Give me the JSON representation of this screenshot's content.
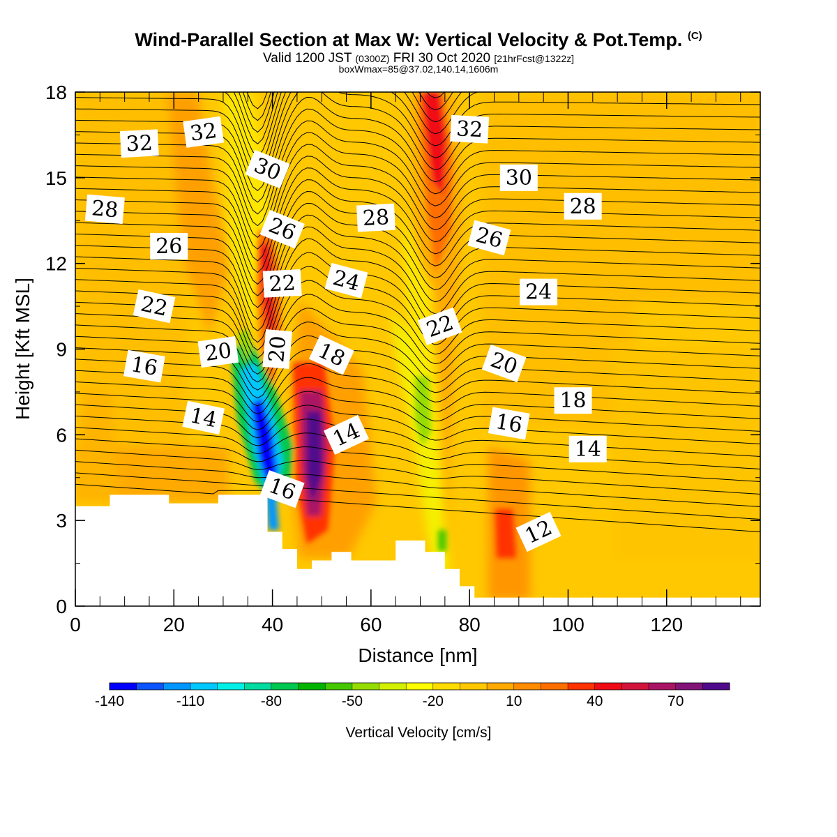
{
  "header": {
    "title": "Wind-Parallel Section at Max W: Vertical Velocity & Pot.Temp.",
    "title_mark": "(C)",
    "valid_prefix": "Valid 1200 JST",
    "valid_utc": "(0300Z)",
    "valid_date": "FRI 30 Oct 2020",
    "forecast": "[21hrFcst@1322z]",
    "box_info": "boxWmax=85@37.02,140.14,1606m"
  },
  "chart_data": {
    "type": "contour",
    "xlabel": "Distance [nm]",
    "ylabel": "Height [Kft MSL]",
    "xlim": [
      0,
      139
    ],
    "ylim": [
      0,
      18
    ],
    "x_ticks": [
      0,
      20,
      40,
      60,
      80,
      100,
      120
    ],
    "y_ticks": [
      0,
      3,
      6,
      9,
      12,
      15,
      18
    ],
    "colorbar": {
      "label": "Vertical Velocity [cm/s]",
      "tick_labels": [
        "-140",
        "-110",
        "-80",
        "-50",
        "-20",
        "10",
        "40",
        "70"
      ],
      "colors": [
        "#0000ff",
        "#0a55ff",
        "#0096ff",
        "#00c8ff",
        "#00f0e6",
        "#00dca0",
        "#00c850",
        "#00b400",
        "#46c800",
        "#96dc00",
        "#d2f000",
        "#ffff00",
        "#ffdc00",
        "#ffc800",
        "#ffaa00",
        "#ff8c00",
        "#ff6e00",
        "#ff3200",
        "#f00a14",
        "#d2143c",
        "#aa1464",
        "#821478",
        "#500a8c"
      ]
    },
    "velocity_features": [
      {
        "kind": "downdraft",
        "x": 36,
        "y": 5.0,
        "min_cms": -140
      },
      {
        "kind": "downdraft",
        "x": 71,
        "y": 7.0,
        "min_cms": -50
      },
      {
        "kind": "updraft",
        "x": 48,
        "y": 5.5,
        "max_cms": 85
      },
      {
        "kind": "updraft",
        "x": 38,
        "y": 10.5,
        "max_cms": 40
      },
      {
        "kind": "updraft",
        "x": 74,
        "y": 15.5,
        "max_cms": 50
      },
      {
        "kind": "updraft",
        "x": 87,
        "y": 2.2,
        "max_cms": 40
      }
    ],
    "terrain_kft": [
      [
        0,
        3.5
      ],
      [
        7,
        3.5
      ],
      [
        7,
        3.9
      ],
      [
        19,
        3.9
      ],
      [
        19,
        3.6
      ],
      [
        29,
        3.6
      ],
      [
        29,
        3.9
      ],
      [
        39,
        3.9
      ],
      [
        39,
        2.6
      ],
      [
        42,
        2.6
      ],
      [
        42,
        2.0
      ],
      [
        45,
        2.0
      ],
      [
        45,
        1.3
      ],
      [
        48,
        1.3
      ],
      [
        48,
        1.6
      ],
      [
        52,
        1.6
      ],
      [
        52,
        1.9
      ],
      [
        56,
        1.9
      ],
      [
        56,
        1.6
      ],
      [
        65,
        1.6
      ],
      [
        65,
        2.3
      ],
      [
        71,
        2.3
      ],
      [
        71,
        1.9
      ],
      [
        75,
        1.9
      ],
      [
        75,
        1.3
      ],
      [
        78,
        1.3
      ],
      [
        78,
        0.7
      ],
      [
        81,
        0.7
      ],
      [
        81,
        0.3
      ],
      [
        139,
        0.3
      ]
    ],
    "theta_labels": [
      {
        "text": "32",
        "x": 13,
        "y": 16.2,
        "rot": -3
      },
      {
        "text": "32",
        "x": 26,
        "y": 16.6,
        "rot": -8
      },
      {
        "text": "30",
        "x": 39,
        "y": 15.3,
        "rot": 22
      },
      {
        "text": "32",
        "x": 80,
        "y": 16.7,
        "rot": 3
      },
      {
        "text": "30",
        "x": 90,
        "y": 15.0,
        "rot": 0
      },
      {
        "text": "28",
        "x": 6,
        "y": 13.9,
        "rot": 5
      },
      {
        "text": "26",
        "x": 19,
        "y": 12.6,
        "rot": 0
      },
      {
        "text": "26",
        "x": 42,
        "y": 13.2,
        "rot": 22
      },
      {
        "text": "28",
        "x": 61,
        "y": 13.6,
        "rot": -3
      },
      {
        "text": "26",
        "x": 84,
        "y": 12.9,
        "rot": 15
      },
      {
        "text": "28",
        "x": 103,
        "y": 14.0,
        "rot": 0
      },
      {
        "text": "24",
        "x": 55,
        "y": 11.4,
        "rot": 15
      },
      {
        "text": "22",
        "x": 42,
        "y": 11.3,
        "rot": -3
      },
      {
        "text": "24",
        "x": 94,
        "y": 11.0,
        "rot": 0
      },
      {
        "text": "22",
        "x": 16,
        "y": 10.5,
        "rot": 12
      },
      {
        "text": "22",
        "x": 74,
        "y": 9.8,
        "rot": -20
      },
      {
        "text": "20",
        "x": 29,
        "y": 8.9,
        "rot": -8
      },
      {
        "text": "20",
        "x": 41,
        "y": 9.0,
        "rot": -85
      },
      {
        "text": "18",
        "x": 52,
        "y": 8.8,
        "rot": 25
      },
      {
        "text": "20",
        "x": 87,
        "y": 8.5,
        "rot": 20
      },
      {
        "text": "16",
        "x": 14,
        "y": 8.4,
        "rot": 10
      },
      {
        "text": "18",
        "x": 101,
        "y": 7.2,
        "rot": 0
      },
      {
        "text": "14",
        "x": 26,
        "y": 6.6,
        "rot": 12
      },
      {
        "text": "16",
        "x": 88,
        "y": 6.4,
        "rot": 10
      },
      {
        "text": "14",
        "x": 55,
        "y": 6.0,
        "rot": -25
      },
      {
        "text": "14",
        "x": 104,
        "y": 5.5,
        "rot": 0
      },
      {
        "text": "16",
        "x": 42,
        "y": 4.1,
        "rot": 20
      },
      {
        "text": "12",
        "x": 94,
        "y": 2.6,
        "rot": -25
      }
    ]
  }
}
